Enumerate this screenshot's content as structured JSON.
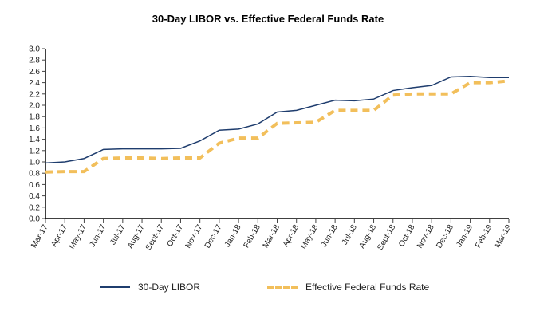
{
  "chart_data": {
    "type": "line",
    "title": "30-Day LIBOR vs. Effective Federal Funds Rate",
    "xlabel": "",
    "ylabel": "",
    "ylim": [
      0,
      3.0
    ],
    "yticks": [
      "0.0",
      "0.2",
      "0.4",
      "0.6",
      "0.8",
      "1.0",
      "1.2",
      "1.4",
      "1.6",
      "1.8",
      "2.0",
      "2.2",
      "2.4",
      "2.6",
      "2.8",
      "3.0"
    ],
    "grid": false,
    "legend_position": "bottom",
    "categories": [
      "Mar-17",
      "Apr-17",
      "May-17",
      "Jun-17",
      "Jul-17",
      "Aug-17",
      "Sept-17",
      "Oct-17",
      "Nov-17",
      "Dec-17",
      "Jan-18",
      "Feb-18",
      "Mar-18",
      "Apr-18",
      "May-18",
      "Jun-18",
      "Jul-18",
      "Aug-18",
      "Sept-18",
      "Oct-18",
      "Nov-18",
      "Dec-18",
      "Jan-19",
      "Feb-19",
      "Mar-19"
    ],
    "series": [
      {
        "name": "30-Day LIBOR",
        "color": "#1f3d6e",
        "style": "solid",
        "values": [
          0.98,
          1.0,
          1.06,
          1.22,
          1.23,
          1.23,
          1.23,
          1.24,
          1.37,
          1.56,
          1.58,
          1.67,
          1.88,
          1.91,
          2.0,
          2.09,
          2.08,
          2.11,
          2.26,
          2.31,
          2.35,
          2.5,
          2.51,
          2.49,
          2.49
        ]
      },
      {
        "name": "Effective Federal Funds Rate",
        "color": "#f2bf5b",
        "style": "dashed",
        "values": [
          0.82,
          0.83,
          0.83,
          1.06,
          1.07,
          1.07,
          1.06,
          1.07,
          1.07,
          1.33,
          1.42,
          1.42,
          1.68,
          1.69,
          1.7,
          1.91,
          1.91,
          1.91,
          2.18,
          2.2,
          2.2,
          2.2,
          2.4,
          2.4,
          2.43
        ]
      }
    ]
  }
}
